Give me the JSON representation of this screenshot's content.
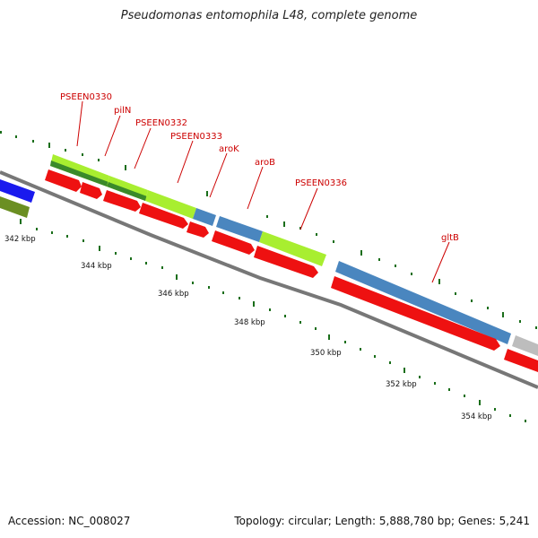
{
  "title": "Pseudomonas entomophila L48, complete genome",
  "accession": "Accession: NC_008027",
  "summary": "Topology: circular; Length: 5,888,780 bp; Genes: 5,241",
  "scale_labels": [
    "342 kbp",
    "344 kbp",
    "346 kbp",
    "348 kbp",
    "350 kbp",
    "352 kbp",
    "354 kbp"
  ],
  "gene_labels": [
    "PSEEN0330",
    "pilN",
    "PSEEN0332",
    "PSEEN0333",
    "aroK",
    "aroB",
    "PSEEN0336",
    "gltB"
  ],
  "colors": {
    "cds": "#ee1111",
    "steel_blue": "#4a86bf",
    "light_green": "#a8ee30",
    "dark_green": "#3a8a2a",
    "blue": "#1a1aee",
    "olive": "#6b8f22",
    "backbone": "#777777",
    "ticks": "#1a6e1a",
    "label": "#cc0000"
  }
}
